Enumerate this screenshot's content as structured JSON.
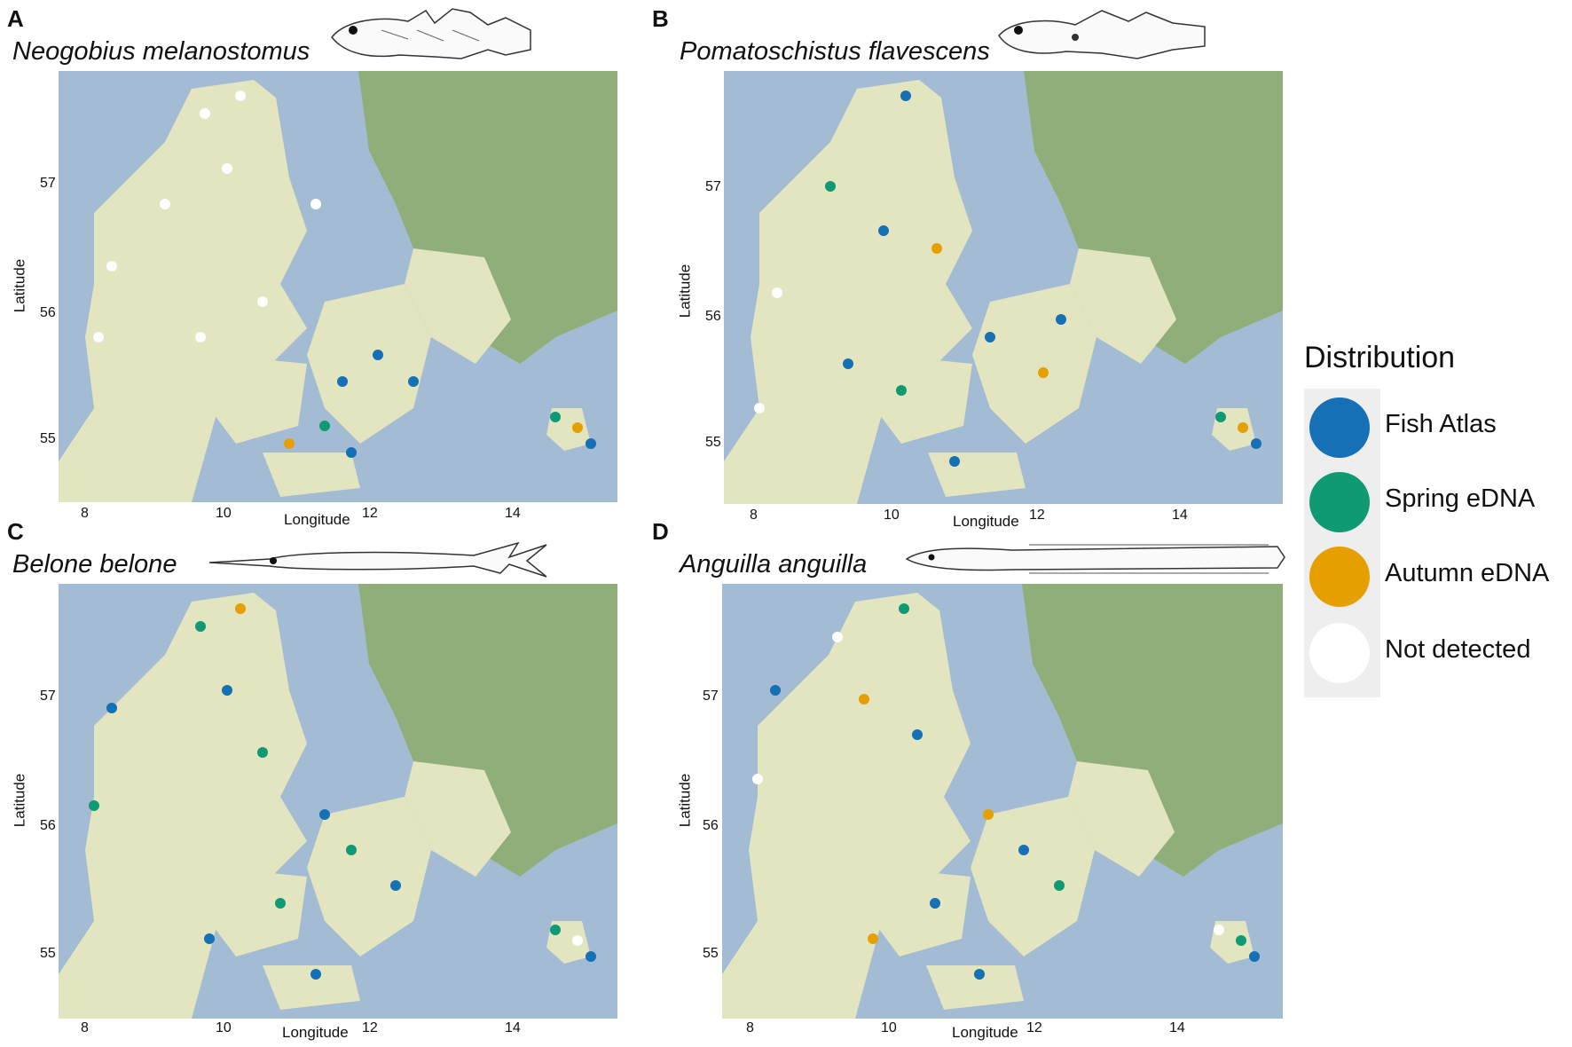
{
  "panels": [
    {
      "letter": "A",
      "species": "Neogobius melanostomus",
      "xlabel": "Longitude",
      "ylabel": "Latitude",
      "xticks": [
        "8",
        "10",
        "12",
        "14"
      ],
      "yticks": [
        "57",
        "56",
        "55"
      ],
      "fish": "goby-drawing"
    },
    {
      "letter": "B",
      "species": "Pomatoschistus flavescens",
      "xlabel": "Longitude",
      "ylabel": "Latitude",
      "xticks": [
        "8",
        "10",
        "12",
        "14"
      ],
      "yticks": [
        "57",
        "56",
        "55"
      ],
      "fish": "small-goby-drawing"
    },
    {
      "letter": "C",
      "species": "Belone belone",
      "xlabel": "Longitude",
      "ylabel": "Latitude",
      "xticks": [
        "8",
        "10",
        "12",
        "14"
      ],
      "yticks": [
        "57",
        "56",
        "55"
      ],
      "fish": "garfish-drawing"
    },
    {
      "letter": "D",
      "species": "Anguilla anguilla",
      "xlabel": "Longitude",
      "ylabel": "Latitude",
      "xticks": [
        "8",
        "10",
        "12",
        "14"
      ],
      "yticks": [
        "57",
        "56",
        "55"
      ],
      "fish": "eel-drawing"
    }
  ],
  "legend": {
    "title": "Distribution",
    "items": [
      {
        "label": "Fish Atlas",
        "color": "#1570b5"
      },
      {
        "label": "Spring eDNA",
        "color": "#0f9a73"
      },
      {
        "label": "Autumn eDNA",
        "color": "#e69f00"
      },
      {
        "label": "Not detected",
        "color": "#ffffff"
      }
    ]
  },
  "colors": {
    "sea": "#a3bbd3",
    "land": "#e3e5c0",
    "forest": "#8fae7a",
    "green_patch": "#b9cf95"
  }
}
